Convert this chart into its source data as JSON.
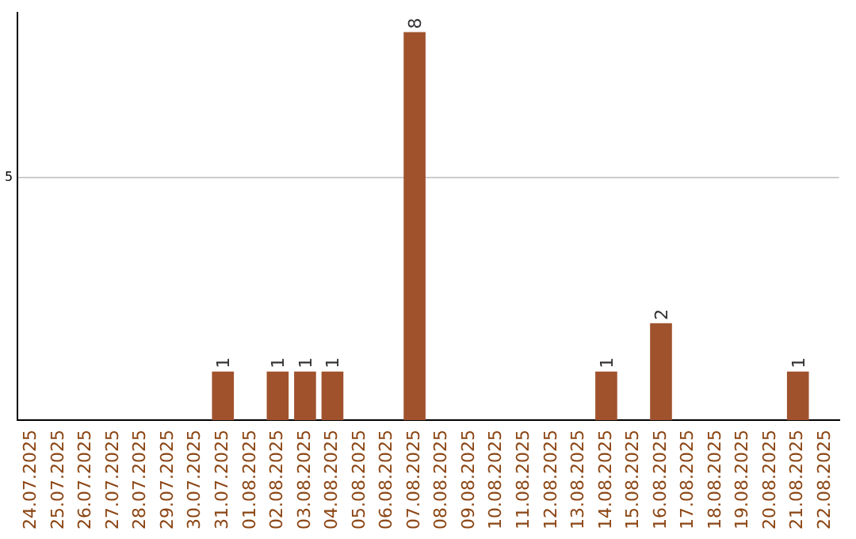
{
  "chart_data": {
    "type": "bar",
    "categories": [
      "24.07.2025",
      "25.07.2025",
      "26.07.2025",
      "27.07.2025",
      "28.07.2025",
      "29.07.2025",
      "30.07.2025",
      "31.07.2025",
      "01.08.2025",
      "02.08.2025",
      "03.08.2025",
      "04.08.2025",
      "05.08.2025",
      "06.08.2025",
      "07.08.2025",
      "08.08.2025",
      "09.08.2025",
      "10.08.2025",
      "11.08.2025",
      "12.08.2025",
      "13.08.2025",
      "14.08.2025",
      "15.08.2025",
      "16.08.2025",
      "17.08.2025",
      "18.08.2025",
      "19.08.2025",
      "20.08.2025",
      "21.08.2025",
      "22.08.2025"
    ],
    "values": [
      0,
      0,
      0,
      0,
      0,
      0,
      0,
      1,
      0,
      1,
      1,
      1,
      0,
      0,
      8,
      0,
      0,
      0,
      0,
      0,
      0,
      1,
      0,
      2,
      0,
      0,
      0,
      0,
      1,
      0
    ],
    "value_labels": [
      null,
      null,
      null,
      null,
      null,
      null,
      null,
      "1",
      null,
      "1",
      "1",
      "1",
      null,
      null,
      "8",
      null,
      null,
      null,
      null,
      null,
      null,
      "1",
      null,
      "2",
      null,
      null,
      null,
      null,
      "1",
      null
    ],
    "color": "#a0522d",
    "ylim": [
      0,
      8.4
    ],
    "yticks": [
      5
    ],
    "grid": "y"
  }
}
